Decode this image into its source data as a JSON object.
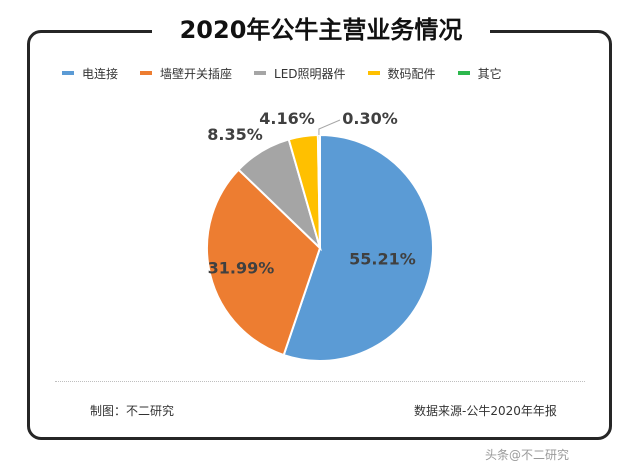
{
  "title": "2020年公牛主营业务情况",
  "footer": {
    "made_by": "制图：不二研究",
    "source": "数据来源-公牛2020年年报"
  },
  "watermark": "头条@不二研究",
  "chart_data": {
    "type": "pie",
    "title": "2020年公牛主营业务情况",
    "legend_position": "top",
    "labels": [
      "电连接",
      "墙壁开关插座",
      "LED照明器件",
      "数码配件",
      "其它"
    ],
    "values": [
      55.21,
      31.99,
      8.35,
      4.16,
      0.3
    ],
    "value_labels": [
      "55.21%",
      "31.99%",
      "8.35%",
      "4.16%",
      "0.30%"
    ],
    "colors": [
      "#5b9bd5",
      "#ed7d31",
      "#a5a5a5",
      "#ffc000",
      "#2db84d"
    ]
  }
}
